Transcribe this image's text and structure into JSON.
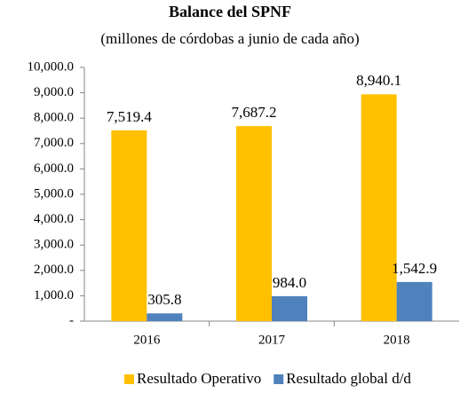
{
  "chart_data": {
    "type": "bar",
    "title": "Balance del SPNF",
    "subtitle": "(millones de córdobas a junio de cada año)",
    "categories": [
      "2016",
      "2017",
      "2018"
    ],
    "series": [
      {
        "name": "Resultado Operativo",
        "color": "#ffc000",
        "values": [
          7519.4,
          7687.2,
          8940.1
        ],
        "value_labels": [
          "7,519.4",
          "7,687.2",
          "8,940.1"
        ]
      },
      {
        "name": "Resultado global d/d",
        "color": "#4f81bd",
        "values": [
          305.8,
          984.0,
          1542.9
        ],
        "value_labels": [
          "305.8",
          "984.0",
          "1,542.9"
        ]
      }
    ],
    "ylim": [
      0,
      10000
    ],
    "yticks": [
      {
        "value": 0,
        "label": "-"
      },
      {
        "value": 1000,
        "label": "1,000.0"
      },
      {
        "value": 2000,
        "label": "2,000.0"
      },
      {
        "value": 3000,
        "label": "3,000.0"
      },
      {
        "value": 4000,
        "label": "4,000.0"
      },
      {
        "value": 5000,
        "label": "5,000.0"
      },
      {
        "value": 6000,
        "label": "6,000.0"
      },
      {
        "value": 7000,
        "label": "7,000.0"
      },
      {
        "value": 8000,
        "label": "8,000.0"
      },
      {
        "value": 9000,
        "label": "9,000.0"
      },
      {
        "value": 10000,
        "label": "10,000.0"
      }
    ],
    "grid": false,
    "legend": "bottom"
  }
}
